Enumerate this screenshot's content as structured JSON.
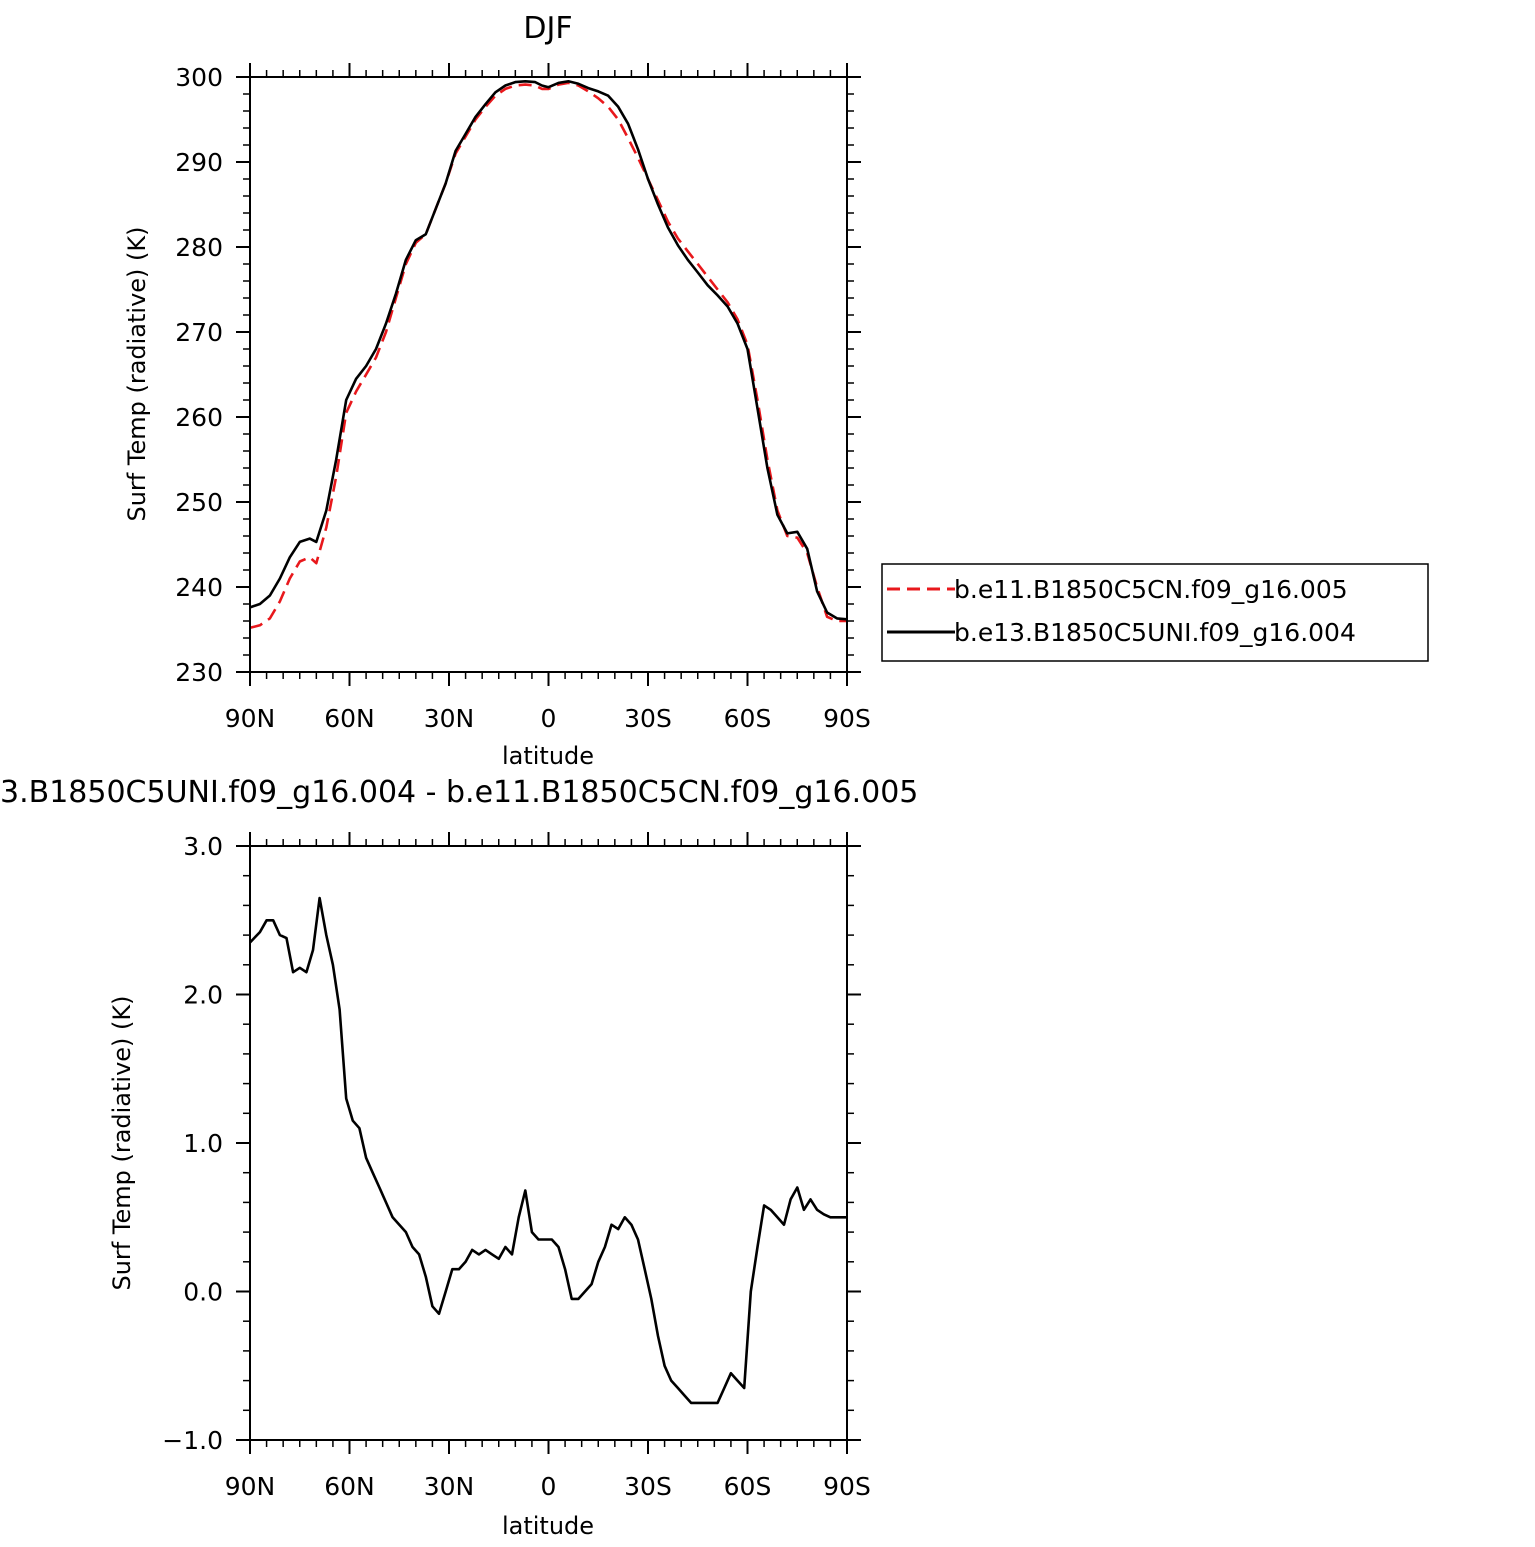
{
  "chart_data": [
    {
      "type": "line",
      "title": "DJF",
      "xlabel": "latitude",
      "ylabel": "Surf Temp (radiative) (K)",
      "xlim": [
        90,
        -90
      ],
      "ylim": [
        230,
        300
      ],
      "x_ticks": [
        90,
        60,
        30,
        0,
        -30,
        -60,
        -90
      ],
      "x_tick_labels": [
        "90N",
        "60N",
        "30N",
        "0",
        "30S",
        "60S",
        "90S"
      ],
      "y_ticks": [
        230,
        240,
        250,
        260,
        270,
        280,
        290,
        300
      ],
      "y_tick_labels": [
        "230",
        "240",
        "250",
        "260",
        "270",
        "280",
        "290",
        "300"
      ],
      "legend_position": "right",
      "series": [
        {
          "name": "b.e11.B1850C5CN.f09_g16.005",
          "color": "#e8181c",
          "dash": "dashed",
          "x": [
            90,
            87,
            84,
            81,
            78,
            75,
            72,
            70,
            67,
            64,
            61,
            58,
            55,
            52,
            49,
            46,
            43,
            40,
            37,
            34,
            31,
            28,
            25,
            22,
            19,
            16,
            13,
            10,
            7,
            4,
            2,
            0,
            -3,
            -6,
            -9,
            -12,
            -15,
            -18,
            -21,
            -24,
            -27,
            -30,
            -33,
            -36,
            -39,
            -42,
            -45,
            -48,
            -51,
            -54,
            -57,
            -60,
            -63,
            -66,
            -69,
            -72,
            -75,
            -78,
            -81,
            -84,
            -87,
            -90
          ],
          "values": [
            235.2,
            235.5,
            236.3,
            238.3,
            241.0,
            243.0,
            243.5,
            242.8,
            247.0,
            253.0,
            260.5,
            263.0,
            265.0,
            267.0,
            270.0,
            274.0,
            278.0,
            280.5,
            281.5,
            284.5,
            287.5,
            291.0,
            293.0,
            295.0,
            296.5,
            297.8,
            298.6,
            299.0,
            299.1,
            299.0,
            298.6,
            298.6,
            299.1,
            299.3,
            299.0,
            298.3,
            297.5,
            296.5,
            295.0,
            292.8,
            290.5,
            288.0,
            285.5,
            283.0,
            281.0,
            279.5,
            278.0,
            276.5,
            275.0,
            273.5,
            271.5,
            268.5,
            262.0,
            255.0,
            249.0,
            246.0,
            245.8,
            244.0,
            240.0,
            236.5,
            236.0,
            236.0
          ]
        },
        {
          "name": "b.e13.B1850C5UNI.f09_g16.004",
          "color": "#000000",
          "dash": "solid",
          "x": [
            90,
            87,
            84,
            81,
            78,
            75,
            72,
            70,
            67,
            64,
            61,
            58,
            55,
            52,
            49,
            46,
            43,
            40,
            37,
            34,
            31,
            28,
            25,
            22,
            19,
            16,
            13,
            10,
            7,
            4,
            2,
            0,
            -3,
            -6,
            -9,
            -12,
            -15,
            -18,
            -21,
            -24,
            -27,
            -30,
            -33,
            -36,
            -39,
            -42,
            -45,
            -48,
            -51,
            -54,
            -57,
            -60,
            -63,
            -66,
            -69,
            -72,
            -75,
            -78,
            -81,
            -84,
            -87,
            -90
          ],
          "values": [
            237.6,
            238.0,
            239.0,
            241.0,
            243.5,
            245.3,
            245.7,
            245.3,
            249.0,
            255.0,
            262.0,
            264.5,
            266.0,
            268.0,
            271.0,
            274.5,
            278.5,
            280.8,
            281.5,
            284.5,
            287.5,
            291.3,
            293.3,
            295.3,
            296.8,
            298.2,
            299.0,
            299.4,
            299.5,
            299.4,
            299.0,
            298.8,
            299.3,
            299.5,
            299.2,
            298.7,
            298.3,
            297.8,
            296.5,
            294.5,
            291.5,
            288.0,
            285.0,
            282.3,
            280.2,
            278.5,
            277.0,
            275.5,
            274.3,
            273.0,
            271.0,
            268.0,
            261.0,
            254.0,
            248.5,
            246.3,
            246.5,
            244.5,
            239.5,
            237.0,
            236.3,
            236.2
          ]
        }
      ]
    },
    {
      "type": "line",
      "title": "3.B1850C5UNI.f09_g16.004 - b.e11.B1850C5CN.f09_g16.005",
      "xlabel": "latitude",
      "ylabel": "Surf Temp (radiative) (K)",
      "xlim": [
        90,
        -90
      ],
      "ylim": [
        -1.0,
        3.0
      ],
      "x_ticks": [
        90,
        60,
        30,
        0,
        -30,
        -60,
        -90
      ],
      "x_tick_labels": [
        "90N",
        "60N",
        "30N",
        "0",
        "30S",
        "60S",
        "90S"
      ],
      "y_ticks": [
        -1.0,
        0.0,
        1.0,
        2.0,
        3.0
      ],
      "y_tick_labels": [
        "-1.0",
        "0.0",
        "1.0",
        "2.0",
        "3.0"
      ],
      "series": [
        {
          "color": "#000000",
          "dash": "solid",
          "x": [
            90,
            87,
            85,
            83,
            81,
            79,
            77,
            75,
            73,
            71,
            69,
            67,
            65,
            63,
            61,
            59,
            57,
            55,
            53,
            51,
            49,
            47,
            45,
            43,
            41,
            39,
            37,
            35,
            33,
            31,
            29,
            27,
            25,
            23,
            21,
            19,
            17,
            15,
            13,
            11,
            9,
            7,
            5,
            3,
            1,
            -1,
            -3,
            -5,
            -7,
            -9,
            -11,
            -13,
            -15,
            -17,
            -19,
            -21,
            -23,
            -25,
            -27,
            -29,
            -31,
            -33,
            -35,
            -37,
            -39,
            -41,
            -43,
            -45,
            -47,
            -49,
            -51,
            -53,
            -55,
            -57,
            -59,
            -61,
            -63,
            -65,
            -67,
            -69,
            -71,
            -73,
            -75,
            -77,
            -79,
            -81,
            -83,
            -85,
            -87,
            -89,
            -90
          ],
          "values": [
            2.35,
            2.42,
            2.5,
            2.5,
            2.4,
            2.38,
            2.15,
            2.18,
            2.15,
            2.3,
            2.65,
            2.4,
            2.2,
            1.9,
            1.3,
            1.15,
            1.1,
            0.9,
            0.8,
            0.7,
            0.6,
            0.5,
            0.45,
            0.4,
            0.3,
            0.25,
            0.1,
            -0.1,
            -0.15,
            0.0,
            0.15,
            0.15,
            0.2,
            0.28,
            0.25,
            0.28,
            0.25,
            0.22,
            0.3,
            0.25,
            0.5,
            0.68,
            0.4,
            0.35,
            0.35,
            0.35,
            0.3,
            0.15,
            -0.05,
            -0.05,
            0.0,
            0.05,
            0.2,
            0.3,
            0.45,
            0.42,
            0.5,
            0.45,
            0.35,
            0.15,
            -0.05,
            -0.3,
            -0.5,
            -0.6,
            -0.65,
            -0.7,
            -0.75,
            -0.75,
            -0.75,
            -0.75,
            -0.75,
            -0.65,
            -0.55,
            -0.6,
            -0.65,
            0.0,
            0.3,
            0.58,
            0.55,
            0.5,
            0.45,
            0.62,
            0.7,
            0.55,
            0.62,
            0.55,
            0.52,
            0.5,
            0.5,
            0.5,
            0.5
          ]
        }
      ]
    }
  ]
}
